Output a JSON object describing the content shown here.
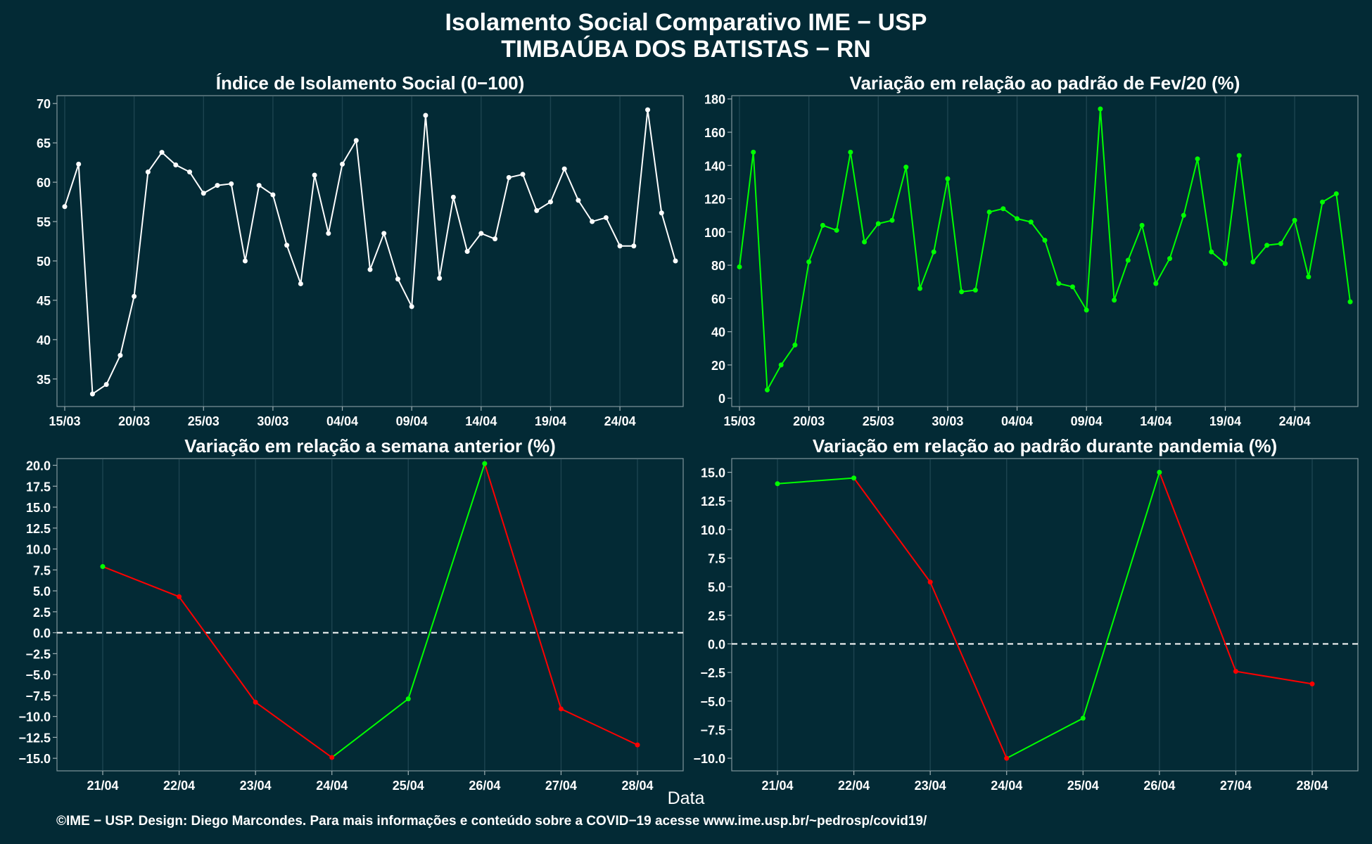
{
  "header": {
    "title": "Isolamento Social Comparativo IME − USP",
    "subtitle": "TIMBAÚBA DOS BATISTAS − RN"
  },
  "x_axis_label": "Data",
  "footer": "©IME − USP. Design: Diego Marcondes. Para mais informações e conteúdo sobre a COVID−19 acesse www.ime.usp.br/~pedrosp/covid19/",
  "colors": {
    "background": "#032a35",
    "grid": "#1d4450",
    "white_series": "#ffffff",
    "positive": "#00ff00",
    "negative": "#ff0000"
  },
  "chart_data": [
    {
      "type": "line",
      "title": "Índice de Isolamento Social (0−100)",
      "x_ticks": [
        "15/03",
        "20/03",
        "25/03",
        "30/03",
        "04/04",
        "09/04",
        "14/04",
        "19/04",
        "24/04"
      ],
      "y_ticks": [
        35,
        40,
        45,
        50,
        55,
        60,
        65,
        70
      ],
      "ylim": [
        31.5,
        71
      ],
      "x_range": [
        0,
        44
      ],
      "x_dates_start": "15/03",
      "y": [
        56.9,
        62.3,
        33.1,
        34.3,
        38.0,
        45.5,
        61.3,
        63.8,
        62.2,
        61.3,
        58.6,
        59.6,
        59.8,
        50.0,
        59.6,
        58.4,
        52.0,
        47.1,
        60.9,
        53.5,
        62.3,
        65.3,
        48.9,
        53.5,
        47.7,
        44.2,
        68.5,
        47.8,
        58.1,
        51.2,
        53.5,
        52.8,
        60.6,
        61.0,
        56.4,
        57.5,
        61.7,
        57.7,
        55.0,
        55.5,
        51.9,
        51.9,
        69.2,
        56.1,
        50.0
      ],
      "series_color": "white",
      "grid": true
    },
    {
      "type": "line",
      "title": "Variação em relação ao padrão de Fev/20 (%)",
      "x_ticks": [
        "15/03",
        "20/03",
        "25/03",
        "30/03",
        "04/04",
        "09/04",
        "14/04",
        "19/04",
        "24/04"
      ],
      "y_ticks": [
        0,
        20,
        40,
        60,
        80,
        100,
        120,
        140,
        160,
        180
      ],
      "ylim": [
        -5,
        182
      ],
      "x_range": [
        0,
        44
      ],
      "x_dates_start": "15/03",
      "y": [
        79,
        148,
        5,
        20,
        32,
        82,
        104,
        101,
        148,
        94,
        105,
        107,
        139,
        66,
        88,
        132,
        64,
        65,
        112,
        114,
        108,
        106,
        95,
        69,
        67,
        53,
        174,
        59,
        83,
        104,
        69,
        84,
        110,
        144,
        88,
        81,
        146,
        82,
        92,
        93,
        107,
        73,
        118,
        123,
        58
      ],
      "series_color": "green",
      "grid": true
    },
    {
      "type": "line",
      "title": "Variação em relação a semana anterior (%)",
      "categories": [
        "21/04",
        "22/04",
        "23/04",
        "24/04",
        "25/04",
        "26/04",
        "27/04",
        "28/04"
      ],
      "values": [
        7.9,
        4.3,
        -8.3,
        -14.9,
        -7.9,
        20.2,
        -9.1,
        -13.4
      ],
      "y_ticks": [
        -15.0,
        -12.5,
        -10.0,
        -7.5,
        -5.0,
        -2.5,
        0.0,
        2.5,
        5.0,
        7.5,
        10.0,
        12.5,
        15.0,
        17.5,
        20.0
      ],
      "ylim": [
        -16.5,
        20.8
      ],
      "reference_line": 0,
      "segment_colors": "green when value increases, red when it decreases",
      "grid": true
    },
    {
      "type": "line",
      "title": "Variação em relação ao padrão durante pandemia (%)",
      "categories": [
        "21/04",
        "22/04",
        "23/04",
        "24/04",
        "25/04",
        "26/04",
        "27/04",
        "28/04"
      ],
      "values": [
        14.0,
        14.5,
        5.4,
        -10.0,
        -6.5,
        15.0,
        -2.4,
        -3.5
      ],
      "y_ticks": [
        -10.0,
        -7.5,
        -5.0,
        -2.5,
        0.0,
        2.5,
        5.0,
        7.5,
        10.0,
        12.5,
        15.0
      ],
      "ylim": [
        -11.1,
        16.2
      ],
      "reference_line": 0,
      "segment_colors": "green when value increases, red when it decreases",
      "grid": true
    }
  ]
}
